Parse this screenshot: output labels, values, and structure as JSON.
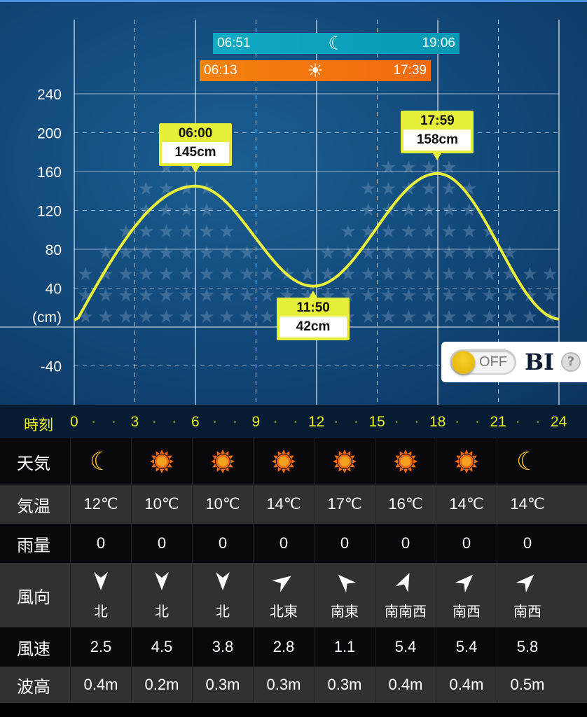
{
  "moon": {
    "rise": "06:51",
    "set": "19:06",
    "icon": "crescent-moon-icon"
  },
  "sun": {
    "rise": "06:13",
    "set": "17:39",
    "icon": "sun-icon"
  },
  "chart_data": {
    "type": "line",
    "ylabel": "(cm)",
    "yticks": [
      "240",
      "200",
      "160",
      "120",
      "80",
      "40",
      "-40"
    ],
    "ylim": [
      -80,
      280
    ],
    "xlim": [
      0,
      24
    ],
    "grid": true,
    "points": [
      {
        "x": 0,
        "y": 7
      },
      {
        "x": 6.0,
        "y": 145
      },
      {
        "x": 11.83,
        "y": 42
      },
      {
        "x": 17.98,
        "y": 158
      },
      {
        "x": 24,
        "y": 17
      }
    ],
    "annotations": [
      {
        "time": "06:00",
        "value": "145cm",
        "x": 6.0,
        "y": 145,
        "pos": "above"
      },
      {
        "time": "11:50",
        "value": "42cm",
        "x": 11.83,
        "y": 42,
        "pos": "below"
      },
      {
        "time": "17:59",
        "value": "158cm",
        "x": 17.98,
        "y": 158,
        "pos": "above"
      }
    ],
    "color": "#e8f03a"
  },
  "bi": {
    "toggle": "OFF",
    "label": "BI",
    "help": "?"
  },
  "time_axis": {
    "label": "時刻",
    "ticks": [
      "0",
      "3",
      "6",
      "9",
      "12",
      "15",
      "18",
      "21",
      "24"
    ]
  },
  "table": {
    "labels": {
      "weather": "天気",
      "temp": "気温",
      "rain": "雨量",
      "wind_dir": "風向",
      "wind_speed": "風速",
      "wave": "波高"
    },
    "weather": [
      "moon",
      "sun",
      "sun",
      "sun",
      "sun",
      "sun",
      "sun",
      "moon"
    ],
    "temp": [
      "12℃",
      "10℃",
      "10℃",
      "14℃",
      "17℃",
      "16℃",
      "14℃",
      "14℃"
    ],
    "rain": [
      "0",
      "0",
      "0",
      "0",
      "0",
      "0",
      "0",
      "0"
    ],
    "wind_dir": [
      "北",
      "北",
      "北",
      "北東",
      "南東",
      "南南西",
      "南西",
      "南西"
    ],
    "wind_speed": [
      "2.5",
      "4.5",
      "3.8",
      "2.8",
      "1.1",
      "5.4",
      "5.4",
      "5.8"
    ],
    "wave": [
      "0.4m",
      "0.2m",
      "0.3m",
      "0.3m",
      "0.3m",
      "0.4m",
      "0.4m",
      "0.5m"
    ]
  }
}
